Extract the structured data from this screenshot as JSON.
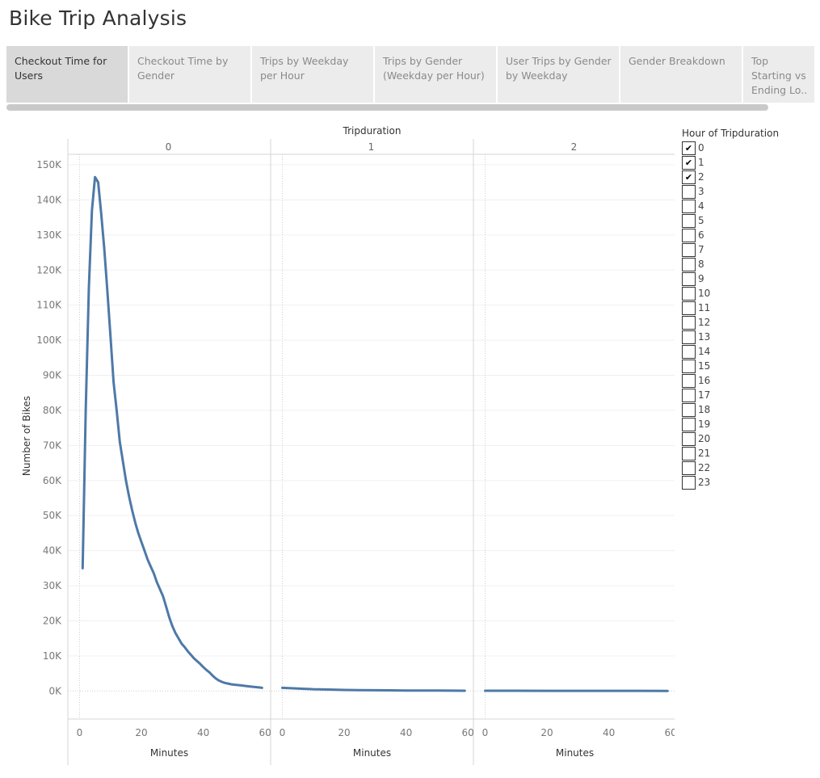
{
  "page_title": "Bike Trip Analysis",
  "tabs": [
    {
      "label": "Checkout Time for Users",
      "active": true
    },
    {
      "label": "Checkout Time by Gender",
      "active": false
    },
    {
      "label": "Trips by Weekday per Hour",
      "active": false
    },
    {
      "label": "Trips by Gender (Weekday per Hour)",
      "active": false
    },
    {
      "label": "User Trips by Gender by Weekday",
      "active": false
    },
    {
      "label": "Gender Breakdown",
      "active": false
    },
    {
      "label": "Top Starting vs Ending Lo..",
      "active": false
    }
  ],
  "legend": {
    "title": "Hour of Tripduration",
    "check_mark": "✔",
    "items": [
      {
        "label": "0",
        "checked": true
      },
      {
        "label": "1",
        "checked": true
      },
      {
        "label": "2",
        "checked": true
      },
      {
        "label": "3",
        "checked": false
      },
      {
        "label": "4",
        "checked": false
      },
      {
        "label": "5",
        "checked": false
      },
      {
        "label": "6",
        "checked": false
      },
      {
        "label": "7",
        "checked": false
      },
      {
        "label": "8",
        "checked": false
      },
      {
        "label": "9",
        "checked": false
      },
      {
        "label": "10",
        "checked": false
      },
      {
        "label": "11",
        "checked": false
      },
      {
        "label": "12",
        "checked": false
      },
      {
        "label": "13",
        "checked": false
      },
      {
        "label": "14",
        "checked": false
      },
      {
        "label": "15",
        "checked": false
      },
      {
        "label": "16",
        "checked": false
      },
      {
        "label": "17",
        "checked": false
      },
      {
        "label": "18",
        "checked": false
      },
      {
        "label": "19",
        "checked": false
      },
      {
        "label": "20",
        "checked": false
      },
      {
        "label": "21",
        "checked": false
      },
      {
        "label": "22",
        "checked": false
      },
      {
        "label": "23",
        "checked": false
      }
    ]
  },
  "chart_data": {
    "type": "line",
    "facet_title": "Tripduration",
    "facets": [
      "0",
      "1",
      "2"
    ],
    "xlabel": "Minutes",
    "ylabel": "Number of Bikes",
    "xlim": [
      -3,
      61
    ],
    "ylim": [
      -8000,
      153000
    ],
    "xticks": [
      0,
      20,
      40,
      60
    ],
    "xtick_labels": [
      "0",
      "20",
      "40",
      "60"
    ],
    "yticks": [
      0,
      10000,
      20000,
      30000,
      40000,
      50000,
      60000,
      70000,
      80000,
      90000,
      100000,
      110000,
      120000,
      130000,
      140000,
      150000
    ],
    "ytick_labels": [
      "0K",
      "10K",
      "20K",
      "30K",
      "40K",
      "50K",
      "60K",
      "70K",
      "80K",
      "90K",
      "100K",
      "110K",
      "120K",
      "130K",
      "140K",
      "150K"
    ],
    "grid": true,
    "line_color": "#4e79a7",
    "series": [
      {
        "facet": "0",
        "points": [
          [
            1,
            35000
          ],
          [
            2,
            80000
          ],
          [
            3,
            115000
          ],
          [
            4,
            137000
          ],
          [
            5,
            146500
          ],
          [
            6,
            145000
          ],
          [
            7,
            136000
          ],
          [
            8,
            126000
          ],
          [
            9,
            114000
          ],
          [
            10,
            101000
          ],
          [
            11,
            88000
          ],
          [
            12,
            80000
          ],
          [
            13,
            71000
          ],
          [
            14,
            65500
          ],
          [
            15,
            60000
          ],
          [
            16,
            55500
          ],
          [
            17,
            51500
          ],
          [
            18,
            48000
          ],
          [
            19,
            45000
          ],
          [
            20,
            42500
          ],
          [
            21,
            40000
          ],
          [
            22,
            37500
          ],
          [
            23,
            35500
          ],
          [
            24,
            33500
          ],
          [
            25,
            31000
          ],
          [
            26,
            29000
          ],
          [
            27,
            27000
          ],
          [
            28,
            24000
          ],
          [
            29,
            21000
          ],
          [
            30,
            18500
          ],
          [
            31,
            16500
          ],
          [
            32,
            15000
          ],
          [
            33,
            13500
          ],
          [
            34,
            12500
          ],
          [
            35,
            11300
          ],
          [
            36,
            10300
          ],
          [
            37,
            9300
          ],
          [
            38,
            8500
          ],
          [
            39,
            7700
          ],
          [
            40,
            6800
          ],
          [
            41,
            6000
          ],
          [
            42,
            5300
          ],
          [
            43,
            4400
          ],
          [
            44,
            3600
          ],
          [
            45,
            3000
          ],
          [
            46,
            2600
          ],
          [
            47,
            2300
          ],
          [
            48,
            2100
          ],
          [
            49,
            1900
          ],
          [
            50,
            1800
          ],
          [
            52,
            1600
          ],
          [
            54,
            1400
          ],
          [
            56,
            1200
          ],
          [
            58,
            1000
          ],
          [
            59,
            900
          ]
        ]
      },
      {
        "facet": "1",
        "points": [
          [
            0,
            900
          ],
          [
            5,
            700
          ],
          [
            10,
            500
          ],
          [
            15,
            400
          ],
          [
            20,
            300
          ],
          [
            25,
            250
          ],
          [
            30,
            200
          ],
          [
            35,
            170
          ],
          [
            40,
            140
          ],
          [
            45,
            120
          ],
          [
            50,
            100
          ],
          [
            55,
            80
          ],
          [
            59,
            70
          ]
        ]
      },
      {
        "facet": "2",
        "points": [
          [
            0,
            60
          ],
          [
            10,
            50
          ],
          [
            20,
            45
          ],
          [
            30,
            40
          ],
          [
            40,
            35
          ],
          [
            50,
            30
          ],
          [
            59,
            25
          ]
        ]
      }
    ]
  }
}
